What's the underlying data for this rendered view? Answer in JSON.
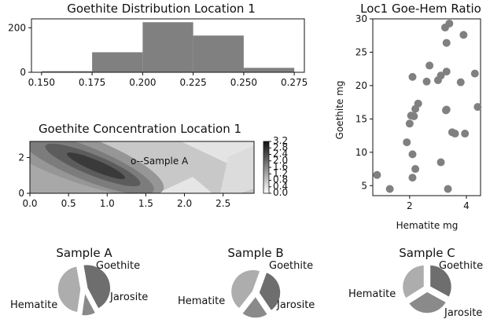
{
  "chart_data": [
    {
      "id": "hist",
      "type": "bar",
      "title": "Goethite Distribution Location 1",
      "bins": [
        {
          "x0": 0.15,
          "x1": 0.175,
          "count": 5
        },
        {
          "x0": 0.175,
          "x1": 0.2,
          "count": 90
        },
        {
          "x0": 0.2,
          "x1": 0.225,
          "count": 225
        },
        {
          "x0": 0.225,
          "x1": 0.25,
          "count": 165
        },
        {
          "x0": 0.25,
          "x1": 0.275,
          "count": 20
        }
      ],
      "xlim": [
        0.145,
        0.28
      ],
      "ylim": [
        0,
        240
      ],
      "xticks": [
        "0.150",
        "0.175",
        "0.200",
        "0.225",
        "0.250",
        "0.275"
      ],
      "yticks": [
        "0",
        "200"
      ],
      "color": "#808080"
    },
    {
      "id": "scatter",
      "type": "scatter",
      "title": "Loc1 Goe-Hem Ratio",
      "xlabel": "Hematite mg",
      "ylabel": "Goethite mg",
      "xlim": [
        0.7,
        4.5
      ],
      "ylim": [
        3.5,
        30
      ],
      "xticks": [
        "2",
        "4"
      ],
      "yticks": [
        "5",
        "10",
        "15",
        "20",
        "25",
        "30"
      ],
      "color": "#808080",
      "points": [
        [
          0.85,
          6.6
        ],
        [
          1.3,
          4.5
        ],
        [
          1.9,
          11.5
        ],
        [
          2.0,
          14.3
        ],
        [
          2.05,
          15.5
        ],
        [
          2.1,
          9.7
        ],
        [
          2.1,
          21.3
        ],
        [
          2.1,
          6.2
        ],
        [
          2.15,
          15.4
        ],
        [
          2.2,
          16.5
        ],
        [
          2.2,
          7.5
        ],
        [
          2.3,
          17.3
        ],
        [
          2.6,
          20.6
        ],
        [
          2.7,
          23.0
        ],
        [
          3.0,
          20.8
        ],
        [
          3.1,
          21.5
        ],
        [
          3.1,
          8.5
        ],
        [
          3.25,
          28.7
        ],
        [
          3.3,
          26.4
        ],
        [
          3.3,
          22.1
        ],
        [
          3.3,
          16.4
        ],
        [
          3.35,
          4.5
        ],
        [
          3.4,
          29.3
        ],
        [
          3.5,
          13.0
        ],
        [
          3.6,
          12.8
        ],
        [
          3.8,
          20.5
        ],
        [
          3.9,
          27.6
        ],
        [
          3.95,
          12.8
        ],
        [
          4.3,
          21.8
        ],
        [
          4.4,
          16.8
        ],
        [
          3.28,
          16.3
        ]
      ]
    },
    {
      "id": "contour",
      "type": "heatmap",
      "title": "Goethite Concentration Location 1",
      "annotation": "o--Sample A",
      "xlim": [
        0,
        2.9
      ],
      "ylim": [
        0,
        2.9
      ],
      "xticks": [
        "0.0",
        "0.5",
        "1.0",
        "1.5",
        "2.0",
        "2.5"
      ],
      "yticks": [
        "0",
        "2"
      ],
      "colorbar_ticks": [
        "0.0",
        "0.4",
        "0.8",
        "1.2",
        "1.6",
        "2.0",
        "2.4",
        "2.8",
        "3.2"
      ],
      "colormap": "grey"
    }
  ],
  "pies": [
    {
      "title": "Sample A",
      "slices": [
        {
          "label": "Goethite",
          "value": 45,
          "color": "#6e6e6e"
        },
        {
          "label": "Jarosite",
          "value": 10,
          "color": "#8a8a8a"
        },
        {
          "label": "Hematite",
          "value": 45,
          "color": "#adadad"
        }
      ]
    },
    {
      "title": "Sample B",
      "slices": [
        {
          "label": "Goethite",
          "value": 35,
          "color": "#6e6e6e"
        },
        {
          "label": "Jarosite",
          "value": 20,
          "color": "#8a8a8a"
        },
        {
          "label": "Hematite",
          "value": 45,
          "color": "#adadad"
        }
      ]
    },
    {
      "title": "Sample C",
      "slices": [
        {
          "label": "Goethite",
          "value": 33,
          "color": "#6e6e6e"
        },
        {
          "label": "Jarosite",
          "value": 33,
          "color": "#8a8a8a"
        },
        {
          "label": "Hematite",
          "value": 34,
          "color": "#adadad"
        }
      ]
    }
  ]
}
